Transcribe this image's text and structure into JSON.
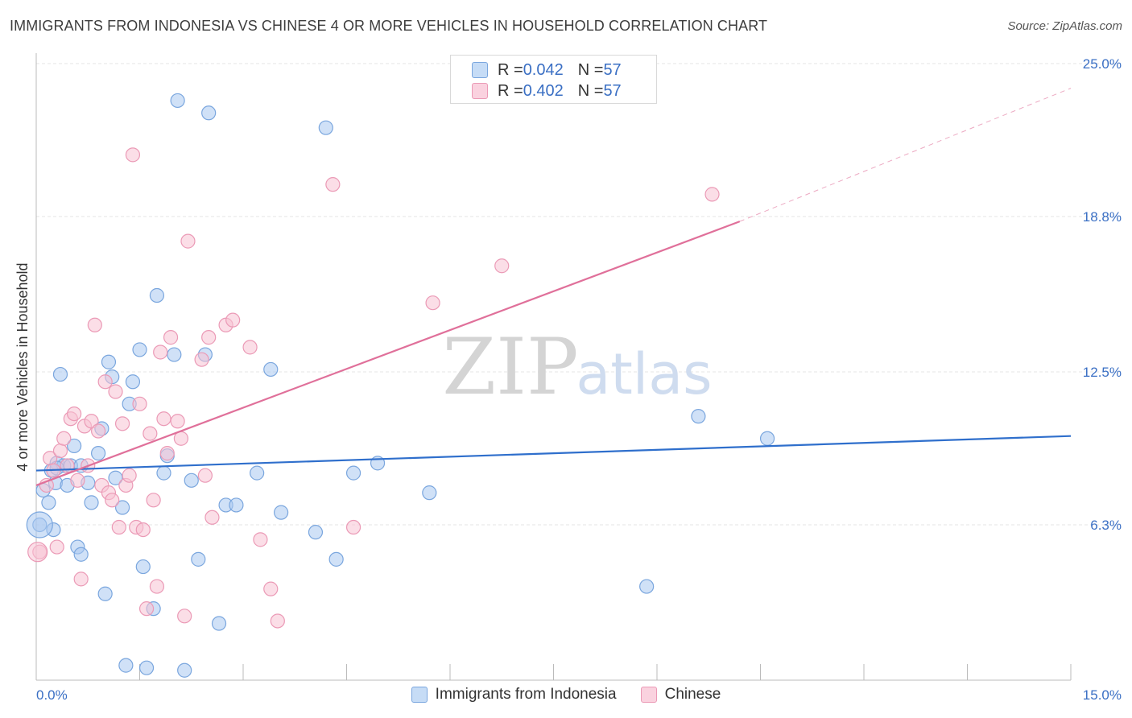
{
  "title": "IMMIGRANTS FROM INDONESIA VS CHINESE 4 OR MORE VEHICLES IN HOUSEHOLD CORRELATION CHART",
  "source": "Source: ZipAtlas.com",
  "watermark": {
    "zip": "ZIP",
    "atlas": "atlas"
  },
  "legend_stats": [
    {
      "r_label": "R = ",
      "r_value": "0.042",
      "n_label": "N = ",
      "n_value": "57"
    },
    {
      "r_label": "R = ",
      "r_value": "0.402",
      "n_label": "N = ",
      "n_value": "57"
    }
  ],
  "chart_data": {
    "type": "scatter",
    "title": "IMMIGRANTS FROM INDONESIA VS CHINESE 4 OR MORE VEHICLES IN HOUSEHOLD CORRELATION CHART",
    "xlabel": "",
    "ylabel": "4 or more Vehicles in Household",
    "xlim": [
      0,
      15
    ],
    "ylim": [
      0,
      25
    ],
    "x_tick_labels": [
      "0.0%",
      "15.0%"
    ],
    "y_ticks": [
      6.3,
      12.5,
      18.8,
      25.0
    ],
    "y_tick_labels": [
      "6.3%",
      "12.5%",
      "18.8%",
      "25.0%"
    ],
    "grid": true,
    "legend_position": "bottom",
    "series": [
      {
        "name": "Immigrants from Indonesia",
        "color": "#a9c8f0",
        "edge_color": "#7aa6de",
        "trend_color": "#2f6fcc",
        "trend": {
          "x": [
            0,
            15
          ],
          "y": [
            8.5,
            9.9
          ]
        },
        "points": [
          [
            0.05,
            6.3
          ],
          [
            0.1,
            7.7
          ],
          [
            0.18,
            7.2
          ],
          [
            0.22,
            8.5
          ],
          [
            0.28,
            8.0
          ],
          [
            0.3,
            8.8
          ],
          [
            0.35,
            12.4
          ],
          [
            0.4,
            8.7
          ],
          [
            0.45,
            7.9
          ],
          [
            0.5,
            8.7
          ],
          [
            0.55,
            9.5
          ],
          [
            0.6,
            5.4
          ],
          [
            0.65,
            5.1
          ],
          [
            0.75,
            8.0
          ],
          [
            0.8,
            7.2
          ],
          [
            0.9,
            9.2
          ],
          [
            0.95,
            10.2
          ],
          [
            1.05,
            12.9
          ],
          [
            1.1,
            12.3
          ],
          [
            1.15,
            8.2
          ],
          [
            1.25,
            7.0
          ],
          [
            1.3,
            0.6
          ],
          [
            1.35,
            11.2
          ],
          [
            1.4,
            12.1
          ],
          [
            1.5,
            13.4
          ],
          [
            1.55,
            4.6
          ],
          [
            1.6,
            0.5
          ],
          [
            1.7,
            2.9
          ],
          [
            1.75,
            15.6
          ],
          [
            1.85,
            8.4
          ],
          [
            1.9,
            9.1
          ],
          [
            2.0,
            13.2
          ],
          [
            2.05,
            23.5
          ],
          [
            2.15,
            0.4
          ],
          [
            2.25,
            8.1
          ],
          [
            2.35,
            4.9
          ],
          [
            2.45,
            13.2
          ],
          [
            2.5,
            23.0
          ],
          [
            2.65,
            2.3
          ],
          [
            2.75,
            7.1
          ],
          [
            2.9,
            7.1
          ],
          [
            3.2,
            8.4
          ],
          [
            3.4,
            12.6
          ],
          [
            3.55,
            6.8
          ],
          [
            4.05,
            6.0
          ],
          [
            4.2,
            22.4
          ],
          [
            4.35,
            4.9
          ],
          [
            4.6,
            8.4
          ],
          [
            4.95,
            8.8
          ],
          [
            5.7,
            7.6
          ],
          [
            8.85,
            3.8
          ],
          [
            9.6,
            10.7
          ],
          [
            10.6,
            9.8
          ],
          [
            0.65,
            8.7
          ],
          [
            0.25,
            6.1
          ],
          [
            0.3,
            8.6
          ],
          [
            1.0,
            3.5
          ]
        ]
      },
      {
        "name": "Chinese",
        "color": "#f7c2d3",
        "edge_color": "#eb9ab6",
        "trend_color": "#e0709a",
        "trend": {
          "x": [
            0,
            10.2
          ],
          "y": [
            7.9,
            18.6
          ]
        },
        "dash_extension": {
          "x": [
            10.2,
            15
          ],
          "y": [
            18.6,
            24.0
          ]
        },
        "points": [
          [
            0.05,
            5.2
          ],
          [
            0.15,
            7.9
          ],
          [
            0.2,
            9.0
          ],
          [
            0.25,
            8.5
          ],
          [
            0.3,
            5.4
          ],
          [
            0.35,
            9.3
          ],
          [
            0.4,
            9.8
          ],
          [
            0.45,
            8.7
          ],
          [
            0.5,
            10.6
          ],
          [
            0.55,
            10.8
          ],
          [
            0.6,
            8.1
          ],
          [
            0.65,
            4.1
          ],
          [
            0.7,
            10.3
          ],
          [
            0.75,
            8.7
          ],
          [
            0.8,
            10.5
          ],
          [
            0.85,
            14.4
          ],
          [
            0.9,
            10.1
          ],
          [
            0.95,
            7.9
          ],
          [
            1.0,
            12.1
          ],
          [
            1.05,
            7.6
          ],
          [
            1.1,
            7.3
          ],
          [
            1.15,
            11.7
          ],
          [
            1.2,
            6.2
          ],
          [
            1.25,
            10.4
          ],
          [
            1.3,
            7.9
          ],
          [
            1.35,
            8.3
          ],
          [
            1.4,
            21.3
          ],
          [
            1.45,
            6.2
          ],
          [
            1.5,
            11.2
          ],
          [
            1.55,
            6.1
          ],
          [
            1.6,
            2.9
          ],
          [
            1.65,
            10.0
          ],
          [
            1.7,
            7.3
          ],
          [
            1.75,
            3.8
          ],
          [
            1.8,
            13.3
          ],
          [
            1.85,
            10.6
          ],
          [
            1.9,
            9.2
          ],
          [
            1.95,
            13.9
          ],
          [
            2.05,
            10.5
          ],
          [
            2.1,
            9.8
          ],
          [
            2.15,
            2.6
          ],
          [
            2.2,
            17.8
          ],
          [
            2.4,
            13.0
          ],
          [
            2.45,
            8.3
          ],
          [
            2.5,
            13.9
          ],
          [
            2.55,
            6.6
          ],
          [
            2.75,
            14.4
          ],
          [
            2.85,
            14.6
          ],
          [
            3.1,
            13.5
          ],
          [
            3.25,
            5.7
          ],
          [
            3.4,
            3.7
          ],
          [
            3.5,
            2.4
          ],
          [
            4.3,
            20.1
          ],
          [
            4.6,
            6.2
          ],
          [
            5.75,
            15.3
          ],
          [
            6.75,
            16.8
          ],
          [
            9.8,
            19.7
          ]
        ]
      }
    ]
  }
}
